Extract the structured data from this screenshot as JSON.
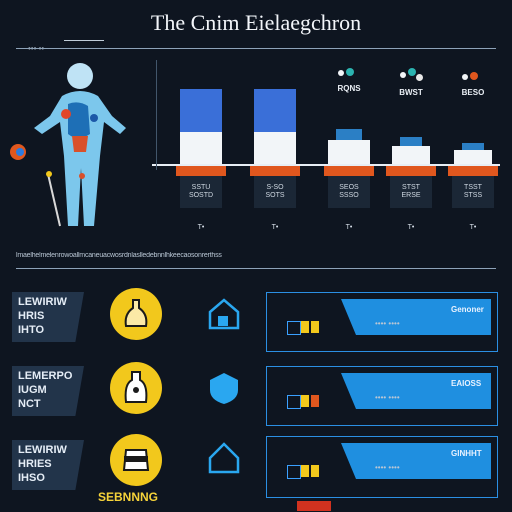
{
  "title": "The Cnim Eielaegchron",
  "top_tag": "••• ••",
  "divider_caption": "lmaelhelmelenrowoallmcaneuacwosrdnlaslledebnnlhkeecaosonrerthss",
  "bars": [
    {
      "cap": "",
      "label": "",
      "sub_a": "SSTU",
      "sub_b": "SOSTD",
      "chip": "T•",
      "value": 0.78,
      "color": "#3a6fd8"
    },
    {
      "cap": "",
      "label": "",
      "sub_a": "S-SO",
      "sub_b": "SOTS",
      "chip": "T•",
      "value": 0.78,
      "color": "#3a6fd8"
    },
    {
      "cap": "RQNS",
      "label": "",
      "sub_a": "SEOS",
      "sub_b": "SSSO",
      "chip": "T•",
      "value": 0.36,
      "color": "#2b7fc5"
    },
    {
      "cap": "BWST",
      "label": "",
      "sub_a": "STST",
      "sub_b": "ERSE",
      "chip": "T•",
      "value": 0.28,
      "color": "#2b7fc5"
    },
    {
      "cap": "BESO",
      "label": "",
      "sub_a": "TSST",
      "sub_b": "STSS",
      "chip": "T•",
      "value": 0.22,
      "color": "#2b7fc5"
    }
  ],
  "rows": [
    {
      "card": [
        "LEWIRIW",
        "HRIS",
        "IHTO"
      ],
      "panel_tag": "Genoner",
      "panel_note": "•••• ••••"
    },
    {
      "card": [
        "LEMERPO",
        "IUGM",
        "NCT"
      ],
      "panel_tag": "EAIOSS",
      "panel_note": "•••• ••••"
    },
    {
      "card": [
        "LEWIRIW",
        "HRIES",
        "IHSO"
      ],
      "panel_tag": "GINHHT",
      "panel_note": "•••• ••••"
    }
  ],
  "footer": "SEBNNNG",
  "colors": {
    "background": "#0e1520",
    "accent_blue": "#1f8fe0",
    "accent_orange": "#e0571e",
    "accent_yellow": "#f2c81c"
  }
}
